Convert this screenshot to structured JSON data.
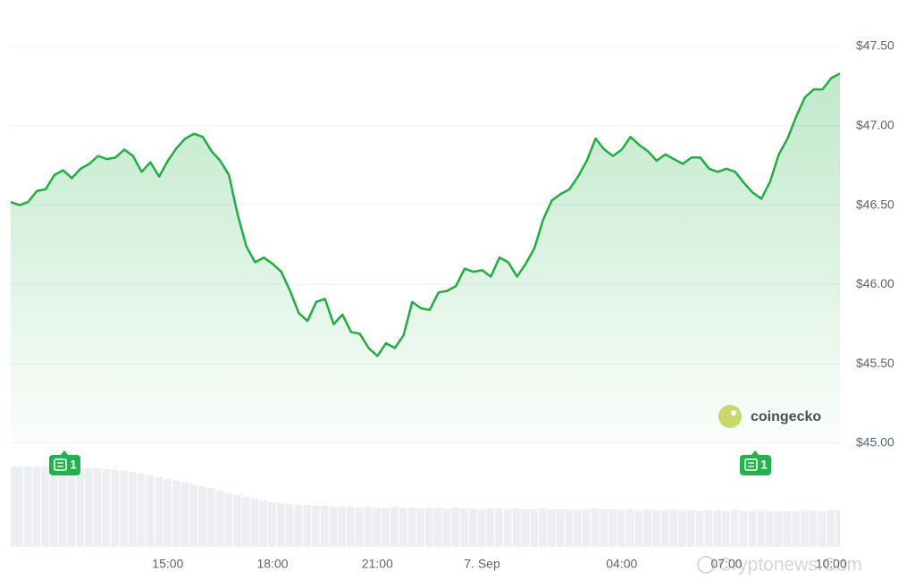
{
  "chart_data": {
    "type": "line",
    "color": "#1db040",
    "values": [
      46.52,
      46.5,
      46.52,
      46.59,
      46.6,
      46.69,
      46.72,
      46.67,
      46.73,
      46.76,
      46.81,
      46.79,
      46.8,
      46.85,
      46.81,
      46.71,
      46.77,
      46.68,
      46.78,
      46.86,
      46.92,
      46.95,
      46.93,
      46.84,
      46.78,
      46.69,
      46.44,
      46.24,
      46.14,
      46.17,
      46.13,
      46.08,
      45.96,
      45.82,
      45.77,
      45.89,
      45.91,
      45.75,
      45.81,
      45.7,
      45.69,
      45.6,
      45.55,
      45.63,
      45.6,
      45.68,
      45.89,
      45.85,
      45.84,
      45.95,
      45.96,
      45.99,
      46.1,
      46.08,
      46.09,
      46.05,
      46.17,
      46.14,
      46.05,
      46.13,
      46.23,
      46.41,
      46.53,
      46.57,
      46.6,
      46.68,
      46.78,
      46.92,
      46.85,
      46.81,
      46.85,
      46.93,
      46.88,
      46.84,
      46.78,
      46.82,
      46.79,
      46.76,
      46.8,
      46.8,
      46.73,
      46.71,
      46.73,
      46.71,
      46.64,
      46.58,
      46.54,
      46.65,
      46.82,
      46.92,
      47.06,
      47.18,
      47.23,
      47.23,
      47.3,
      47.33
    ],
    "ylim": [
      45.0,
      47.5
    ],
    "yticks": [
      {
        "value": 45.0,
        "label": "$45.00"
      },
      {
        "value": 45.5,
        "label": "$45.50"
      },
      {
        "value": 46.0,
        "label": "$46.00"
      },
      {
        "value": 46.5,
        "label": "$46.50"
      },
      {
        "value": 47.0,
        "label": "$47.00"
      },
      {
        "value": 47.5,
        "label": "$47.50"
      }
    ],
    "xticks": [
      {
        "value": 18,
        "label": "15:00"
      },
      {
        "value": 30,
        "label": "18:00"
      },
      {
        "value": 42,
        "label": "21:00"
      },
      {
        "value": 54,
        "label": "7. Sep"
      },
      {
        "value": 70,
        "label": "04:00"
      },
      {
        "value": 82,
        "label": "07:00"
      },
      {
        "value": 94,
        "label": "10:00"
      }
    ],
    "grid": true,
    "volume": {
      "color": "#eceef2",
      "axis": "y2",
      "values": [
        90,
        90,
        90,
        90,
        90,
        89,
        89,
        89,
        88,
        88,
        88,
        87,
        86,
        85,
        84,
        82,
        80,
        78,
        76,
        74,
        72,
        70,
        68,
        66,
        63,
        60,
        58,
        56,
        54,
        52,
        50,
        49,
        48,
        47,
        47,
        46,
        46,
        45,
        45,
        45,
        44,
        45,
        44,
        44,
        45,
        44,
        44,
        43,
        44,
        44,
        43,
        44,
        43,
        43,
        42,
        43,
        43,
        42,
        43,
        42,
        42,
        43,
        42,
        42,
        42,
        41,
        42,
        43,
        42,
        42,
        41,
        42,
        41,
        42,
        41,
        41,
        42,
        41,
        41,
        40,
        41,
        41,
        40,
        41,
        40,
        40,
        41,
        40,
        40,
        40,
        40,
        41,
        40,
        40,
        41,
        41
      ]
    },
    "y2lim": [
      0,
      100
    ],
    "annotations": [
      "1",
      "1"
    ],
    "source": "coingecko",
    "watermark": "Cryptonews.Com"
  }
}
